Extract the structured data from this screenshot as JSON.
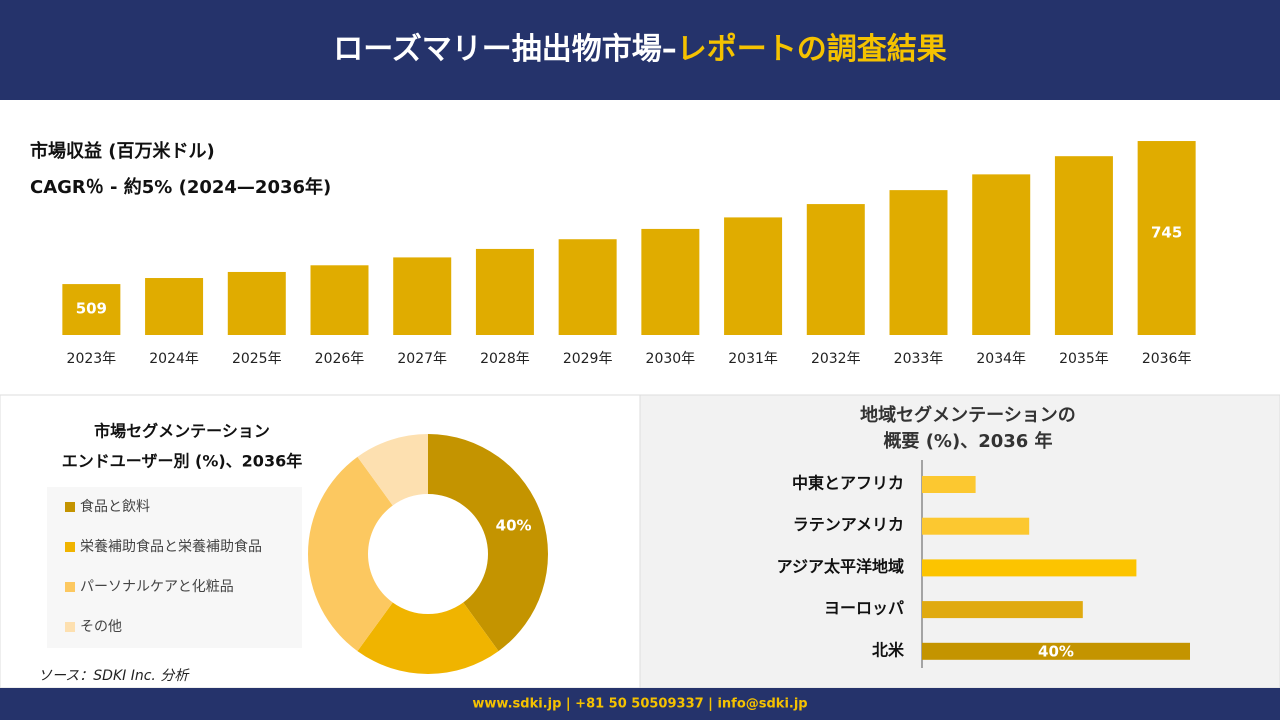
{
  "header": {
    "title_main": "ローズマリー抽出物市場–",
    "title_accent": "レポートの調査結果"
  },
  "footer": "www.sdki.jp | +81 50 50509337 | info@sdki.jp",
  "source": "ソース：SDKI Inc. 分析",
  "chart_data": [
    {
      "type": "bar",
      "title": "市場収益 (百万米ドル)",
      "subtitle": "CAGR％ - 約5% (2024—2036年)",
      "categories": [
        "2023年",
        "2024年",
        "2025年",
        "2026年",
        "2027年",
        "2028年",
        "2029年",
        "2030年",
        "2031年",
        "2032年",
        "2033年",
        "2034年",
        "2035年",
        "2036年"
      ],
      "values": [
        509,
        519,
        529,
        540,
        553,
        567,
        583,
        600,
        619,
        641,
        664,
        690,
        720,
        745
      ],
      "value_labels": [
        "509",
        null,
        null,
        null,
        null,
        null,
        null,
        null,
        null,
        null,
        null,
        null,
        null,
        "745"
      ],
      "color": "#e0ac00",
      "ylim": [
        425,
        750
      ]
    },
    {
      "type": "donut",
      "title": "市場セグメンテーション",
      "subtitle": "エンドユーザー別 (%)、2036年",
      "categories": [
        "食品と飲料",
        "栄養補助食品と栄養補助食品",
        "パーソナルケアと化粧品",
        "その他"
      ],
      "values": [
        40,
        20,
        30,
        10
      ],
      "value_labels": [
        "40%",
        null,
        null,
        null
      ],
      "colors": [
        "#c49400",
        "#f0b400",
        "#fcc860",
        "#fde0b0"
      ]
    },
    {
      "type": "hbar",
      "title": "地域セグメンテーションの",
      "subtitle": "概要 (%)、2036 年",
      "categories": [
        "中東とアフリカ",
        "ラテンアメリカ",
        "アジア太平洋地域",
        "ヨーロッパ",
        "北米"
      ],
      "values": [
        8,
        16,
        32,
        24,
        40
      ],
      "value_labels": [
        null,
        null,
        null,
        null,
        "40%"
      ],
      "colors": [
        "#fcc830",
        "#fcc830",
        "#fcc400",
        "#e0aa10",
        "#c49400"
      ],
      "xlim": [
        0,
        40
      ]
    }
  ]
}
